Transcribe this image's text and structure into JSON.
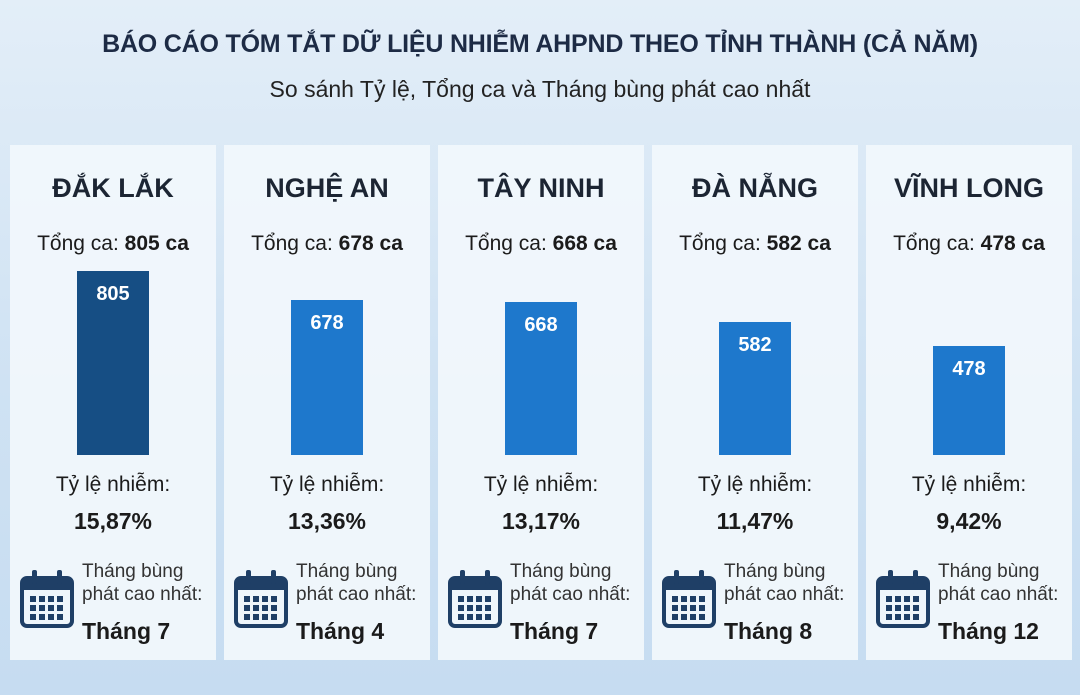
{
  "chart_data": {
    "type": "bar",
    "title": "BÁO CÁO TÓM TẮT DỮ LIỆU NHIỄM AHPND THEO TỈNH THÀNH (CẢ NĂM)",
    "subtitle": "So sánh Tỷ lệ, Tổng ca và Tháng bùng phát cao nhất",
    "categories": [
      "ĐẮK LẮK",
      "NGHỆ AN",
      "TÂY NINH",
      "ĐÀ NẴNG",
      "VĨNH LONG"
    ],
    "values": [
      805,
      678,
      668,
      582,
      478
    ],
    "colors": [
      "#164e84",
      "#1e78cc",
      "#1e78cc",
      "#1e78cc",
      "#1e78cc"
    ],
    "total_label": "Tổng ca:",
    "totals": [
      "805 ca",
      "678 ca",
      "668 ca",
      "582 ca",
      "478 ca"
    ],
    "rate_label": "Tỷ lệ nhiễm:",
    "rates": [
      "15,87%",
      "13,36%",
      "13,17%",
      "11,47%",
      "9,42%"
    ],
    "peak_label": "Tháng bùng phát cao nhất:",
    "peak_months": [
      "Tháng 7",
      "Tháng 4",
      "Tháng 7",
      "Tháng 8",
      "Tháng 12"
    ]
  }
}
